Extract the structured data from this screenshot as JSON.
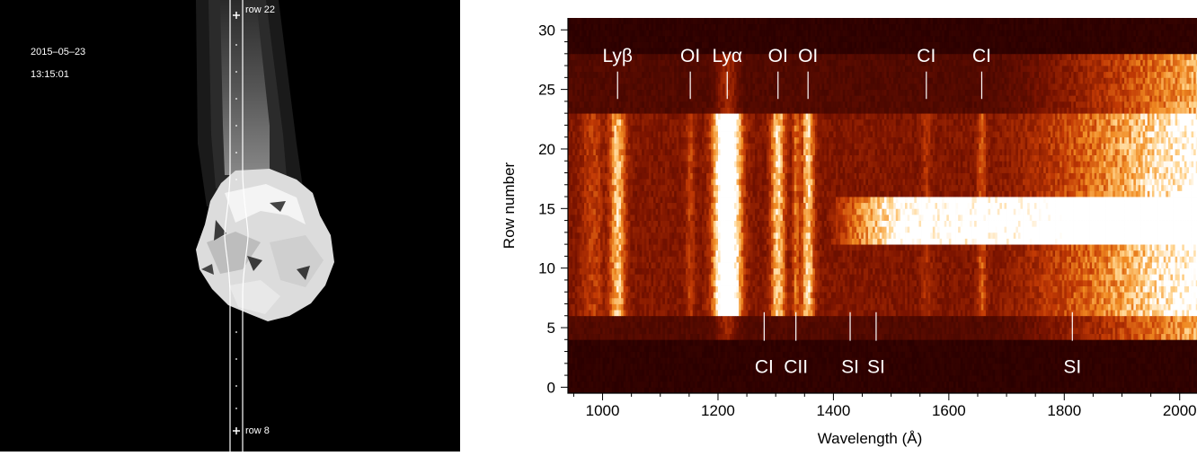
{
  "image_panel": {
    "date": "2015–05–23",
    "time": "13:15:01",
    "slit_top_label": "row 22",
    "slit_bottom_label": "row 8"
  },
  "chart_data": {
    "type": "heatmap",
    "xlabel": "Wavelength (Å)",
    "ylabel": "Row number",
    "xlim": [
      940,
      2030
    ],
    "ylim": [
      -0.5,
      31
    ],
    "x_ticks": [
      1000,
      1200,
      1400,
      1600,
      1800,
      2000
    ],
    "y_ticks": [
      0,
      5,
      10,
      15,
      20,
      25,
      30
    ],
    "colormap": [
      "#2a0000",
      "#7a1300",
      "#c23a05",
      "#f08a22",
      "#ffd28a",
      "#ffffff"
    ],
    "rows_with_signal": [
      4,
      28
    ],
    "strong_rows": [
      12,
      16
    ],
    "top_lines": [
      {
        "label": "Lyβ",
        "wavelength": 1026
      },
      {
        "label": "OI",
        "wavelength": 1152
      },
      {
        "label": "Lyα",
        "wavelength": 1216
      },
      {
        "label": "OI",
        "wavelength": 1304
      },
      {
        "label": "OI",
        "wavelength": 1356
      },
      {
        "label": "CI",
        "wavelength": 1561
      },
      {
        "label": "CI",
        "wavelength": 1657
      }
    ],
    "bottom_lines": [
      {
        "label": "CI",
        "wavelength": 1280
      },
      {
        "label": "CII",
        "wavelength": 1335
      },
      {
        "label": "SI",
        "wavelength": 1429
      },
      {
        "label": "SI",
        "wavelength": 1474
      },
      {
        "label": "SI",
        "wavelength": 1814
      }
    ]
  }
}
